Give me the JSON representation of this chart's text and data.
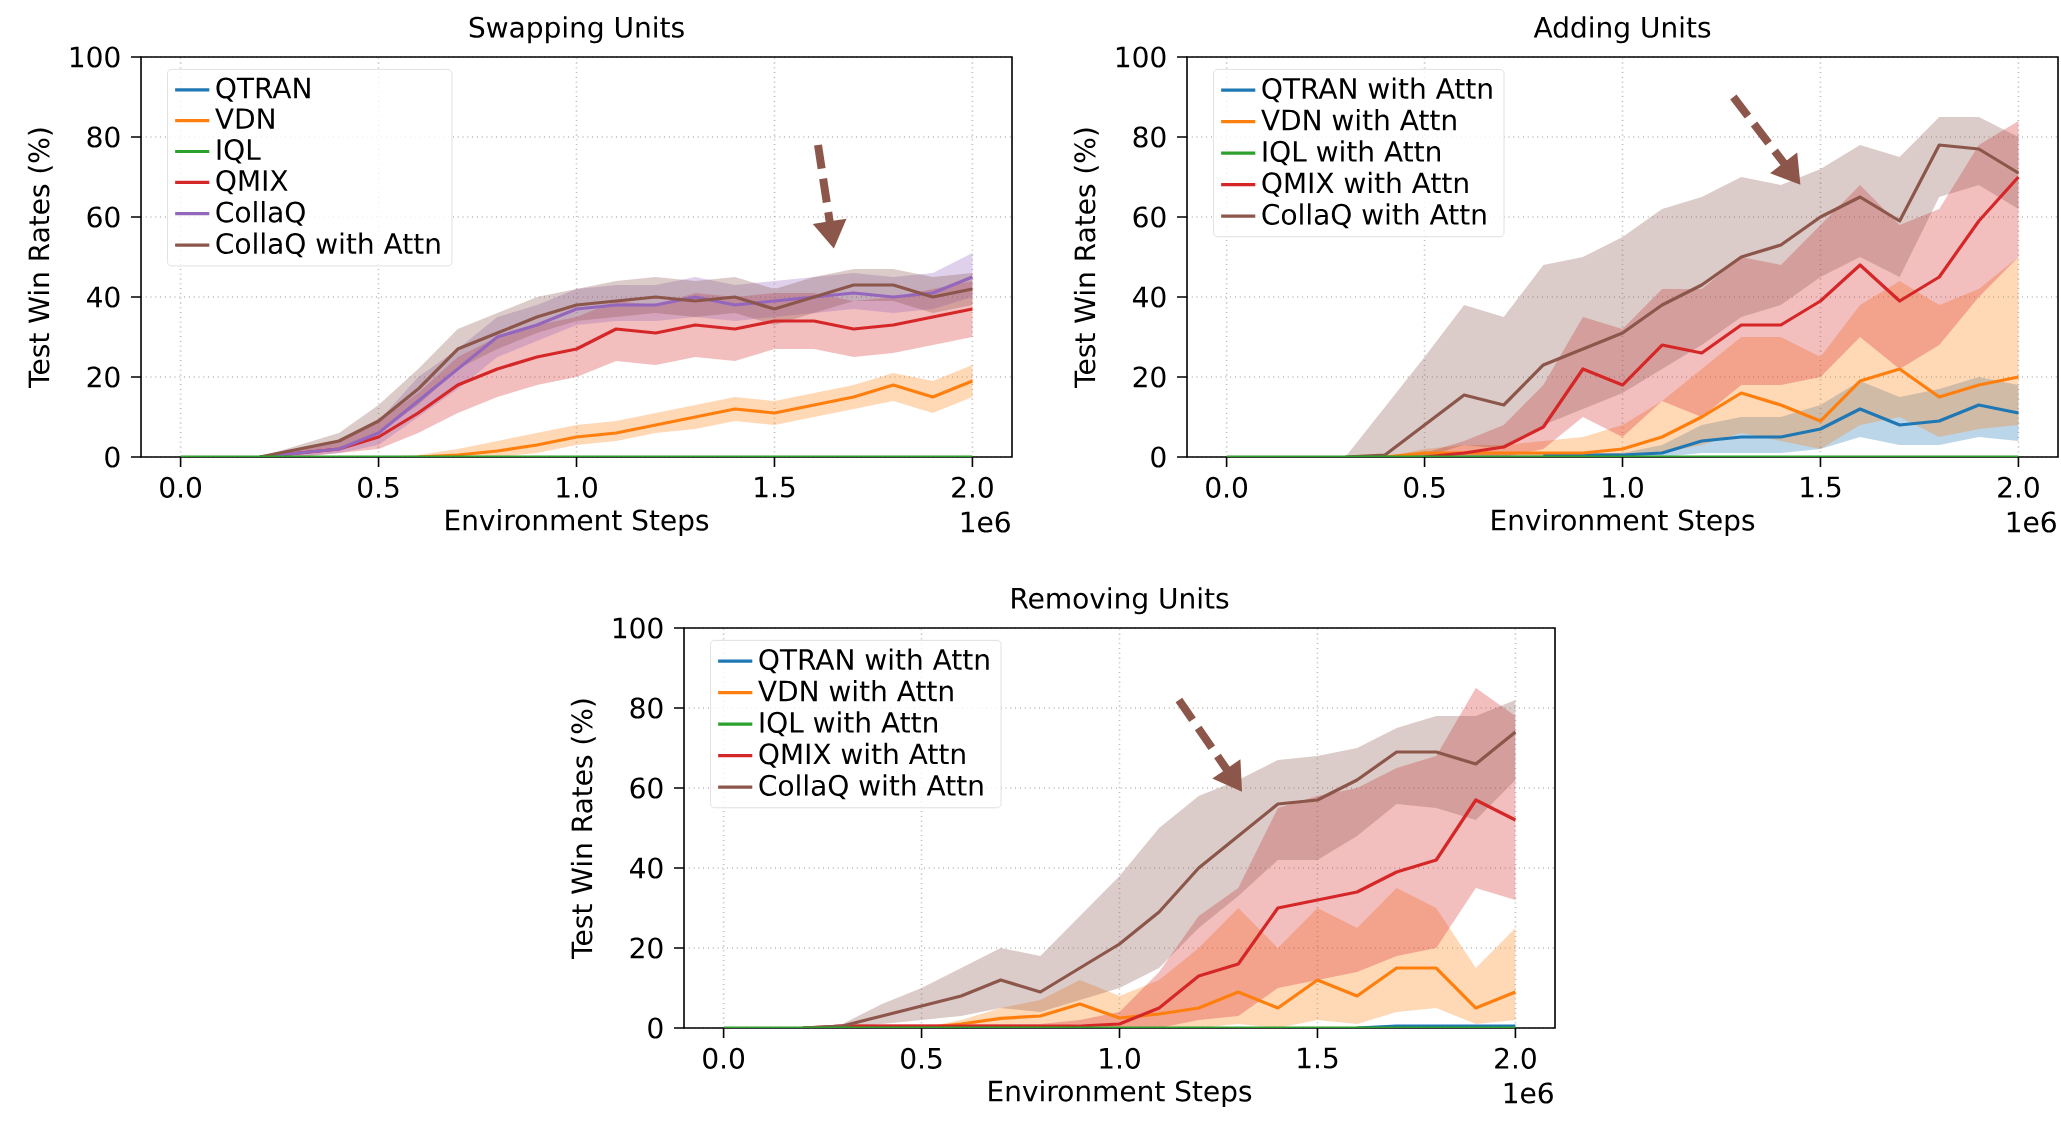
{
  "chart_data": [
    {
      "type": "line",
      "title": "Swapping Units",
      "xlabel": "Environment Steps",
      "ylabel": "Test Win Rates (%)",
      "annotations": [
        "1e6"
      ],
      "grid": true,
      "legend": "top left",
      "marker": "none",
      "line_style": "solid",
      "xlim": [
        -0.1,
        2.1
      ],
      "ylim": [
        0,
        100
      ],
      "xticks": [
        {
          "value": 0,
          "label": "0.0"
        },
        {
          "value": 0.5,
          "label": "0.5"
        },
        {
          "value": 1,
          "label": "1.0"
        },
        {
          "value": 1.5,
          "label": "1.5"
        },
        {
          "value": 2,
          "label": "2.0"
        }
      ],
      "yticks": [
        0,
        20,
        40,
        60,
        80,
        100
      ],
      "x": [
        0,
        0.1,
        0.2,
        0.3,
        0.4,
        0.5,
        0.6,
        0.7,
        0.8,
        0.9,
        1.0,
        1.1,
        1.2,
        1.3,
        1.4,
        1.5,
        1.6,
        1.7,
        1.8,
        1.9,
        2.0
      ],
      "series": [
        {
          "name": "QTRAN",
          "color": "#1f77b4",
          "values": [
            null,
            null,
            null,
            null,
            null,
            null,
            null,
            null,
            null,
            null,
            null,
            null,
            null,
            null,
            null,
            null,
            null,
            null,
            null,
            null,
            null
          ]
        },
        {
          "name": "VDN",
          "color": "#ff7f0e",
          "values": [
            null,
            null,
            null,
            null,
            null,
            null,
            0,
            0.5,
            1.5,
            3,
            5,
            6,
            8,
            10,
            12,
            11,
            13,
            15,
            18,
            15,
            19
          ],
          "lower": [
            0,
            0,
            0,
            0,
            0,
            0,
            0,
            0,
            0,
            1,
            3,
            4,
            6,
            7,
            9,
            8,
            10,
            12,
            14,
            11,
            15
          ],
          "upper": [
            0,
            0,
            0,
            0,
            0,
            0,
            0.5,
            2,
            4,
            6,
            8,
            9,
            11,
            13,
            15,
            14,
            16,
            18,
            21,
            19,
            23
          ]
        },
        {
          "name": "IQL",
          "color": "#2ca02c",
          "values": [
            0,
            0,
            0,
            0,
            0,
            0,
            0,
            0,
            0,
            0,
            0,
            0,
            0,
            0,
            0,
            0,
            0,
            0,
            0,
            0,
            0
          ]
        },
        {
          "name": "QMIX",
          "color": "#d62728",
          "values": [
            null,
            null,
            0,
            1,
            2,
            5,
            11,
            18,
            22,
            25,
            27,
            32,
            31,
            33,
            32,
            34,
            34,
            32,
            33,
            35,
            37
          ],
          "lower": [
            0,
            0,
            0,
            0,
            1,
            2,
            6,
            11,
            15,
            18,
            20,
            24,
            23,
            25,
            24,
            27,
            27,
            25,
            26,
            28,
            30
          ],
          "upper": [
            0,
            0,
            0,
            2,
            4,
            9,
            16,
            25,
            30,
            33,
            35,
            39,
            38,
            41,
            40,
            41,
            41,
            39,
            40,
            42,
            44
          ]
        },
        {
          "name": "CollaQ",
          "color": "#9467bd",
          "values": [
            null,
            null,
            0,
            1,
            2,
            6,
            14,
            22,
            30,
            33,
            37,
            38,
            38,
            40,
            38,
            39,
            40,
            41,
            40,
            41,
            45
          ],
          "lower": [
            0,
            0,
            0,
            0,
            1,
            3,
            10,
            17,
            25,
            29,
            33,
            34,
            34,
            35,
            34,
            35,
            36,
            37,
            36,
            37,
            40
          ],
          "upper": [
            0,
            0,
            0,
            2,
            4,
            9,
            20,
            27,
            35,
            38,
            42,
            43,
            43,
            45,
            43,
            44,
            45,
            46,
            45,
            46,
            51
          ]
        },
        {
          "name": "CollaQ with Attn",
          "color": "#8c564b",
          "values": [
            null,
            null,
            0,
            2,
            4,
            9,
            17,
            27,
            31,
            35,
            38,
            39,
            40,
            39,
            40,
            37,
            40,
            43,
            43,
            40,
            42
          ],
          "lower": [
            0,
            0,
            0,
            1,
            2,
            6,
            13,
            22,
            27,
            31,
            34,
            35,
            36,
            35,
            36,
            33,
            36,
            39,
            39,
            36,
            38
          ],
          "upper": [
            0,
            0,
            0,
            3,
            6,
            13,
            22,
            32,
            36,
            40,
            42,
            44,
            45,
            44,
            45,
            42,
            45,
            47,
            47,
            45,
            46
          ]
        }
      ]
    },
    {
      "type": "line",
      "title": "Adding Units",
      "xlabel": "Environment Steps",
      "ylabel": "Test Win Rates (%)",
      "annotations": [
        "1e6"
      ],
      "grid": true,
      "legend": "top left",
      "marker": "none",
      "line_style": "solid",
      "xlim": [
        -0.1,
        2.1
      ],
      "ylim": [
        0,
        100
      ],
      "xticks": [
        {
          "value": 0,
          "label": "0.0"
        },
        {
          "value": 0.5,
          "label": "0.5"
        },
        {
          "value": 1,
          "label": "1.0"
        },
        {
          "value": 1.5,
          "label": "1.5"
        },
        {
          "value": 2,
          "label": "2.0"
        }
      ],
      "yticks": [
        0,
        20,
        40,
        60,
        80,
        100
      ],
      "x": [
        0,
        0.1,
        0.2,
        0.3,
        0.4,
        0.5,
        0.6,
        0.7,
        0.8,
        0.9,
        1.0,
        1.1,
        1.2,
        1.3,
        1.4,
        1.5,
        1.6,
        1.7,
        1.8,
        1.9,
        2.0
      ],
      "series": [
        {
          "name": "QTRAN with Attn",
          "color": "#1f77b4",
          "values": [
            null,
            null,
            null,
            null,
            null,
            null,
            null,
            null,
            0.5,
            0.5,
            0.5,
            1,
            4,
            5,
            5,
            7,
            12,
            8,
            9,
            13,
            11
          ],
          "lower": [
            0,
            0,
            0,
            0,
            0,
            0,
            0,
            0,
            0,
            0,
            0,
            0,
            1,
            1,
            1,
            2,
            5,
            3,
            3,
            5,
            4
          ],
          "upper": [
            0,
            0,
            0,
            0,
            0,
            1,
            1,
            1,
            1,
            1,
            1,
            3,
            8,
            10,
            10,
            13,
            19,
            15,
            17,
            20,
            18
          ]
        },
        {
          "name": "VDN with Attn",
          "color": "#ff7f0e",
          "values": [
            null,
            null,
            null,
            null,
            0,
            1,
            1,
            1,
            1,
            1,
            2,
            5,
            10,
            16,
            13,
            9,
            19,
            22,
            15,
            18,
            20
          ],
          "lower": [
            0,
            0,
            0,
            0,
            0,
            0,
            0,
            0,
            0,
            0,
            0,
            1,
            3,
            6,
            4,
            2,
            8,
            10,
            5,
            7,
            8
          ],
          "upper": [
            0,
            0,
            0,
            0,
            0,
            2,
            3,
            3,
            4,
            5,
            8,
            14,
            22,
            30,
            30,
            25,
            38,
            44,
            38,
            42,
            50
          ]
        },
        {
          "name": "IQL with Attn",
          "color": "#2ca02c",
          "values": [
            0,
            0,
            0,
            0,
            0,
            0,
            0,
            0,
            0,
            0,
            0,
            0,
            0,
            0,
            0,
            0,
            0,
            0,
            0,
            0,
            0
          ]
        },
        {
          "name": "QMIX with Attn",
          "color": "#d62728",
          "values": [
            null,
            null,
            null,
            null,
            null,
            0,
            1,
            2.5,
            7.5,
            22,
            18,
            28,
            26,
            33,
            33,
            39,
            48,
            39,
            45,
            59,
            70
          ],
          "lower": [
            0,
            0,
            0,
            0,
            0,
            0,
            0,
            0,
            2,
            10,
            5,
            14,
            10,
            18,
            18,
            20,
            30,
            22,
            28,
            40,
            50
          ],
          "upper": [
            0,
            0,
            0,
            0,
            0,
            1,
            4,
            8,
            18,
            35,
            32,
            42,
            42,
            50,
            48,
            58,
            68,
            58,
            62,
            78,
            84
          ]
        },
        {
          "name": "CollaQ with Attn",
          "color": "#8c564b",
          "values": [
            null,
            null,
            null,
            0,
            0.5,
            8,
            15.5,
            13,
            23,
            27,
            31,
            38,
            43,
            50,
            53,
            60,
            65,
            59,
            78,
            77,
            71
          ],
          "lower": [
            0,
            0,
            0,
            0,
            null,
            0,
            3,
            2,
            8,
            12,
            16,
            22,
            28,
            35,
            38,
            45,
            50,
            45,
            65,
            68,
            62
          ],
          "upper": [
            0,
            0,
            0,
            0,
            null,
            25,
            38,
            35,
            48,
            50,
            55,
            62,
            65,
            70,
            68,
            72,
            78,
            75,
            85,
            85,
            80
          ]
        }
      ]
    },
    {
      "type": "line",
      "title": "Removing Units",
      "xlabel": "Environment Steps",
      "ylabel": "Test Win Rates (%)",
      "annotations": [
        "1e6"
      ],
      "grid": true,
      "legend": "top left",
      "marker": "none",
      "line_style": "solid",
      "xlim": [
        -0.1,
        2.1
      ],
      "ylim": [
        0,
        100
      ],
      "xticks": [
        {
          "value": 0,
          "label": "0.0"
        },
        {
          "value": 0.5,
          "label": "0.5"
        },
        {
          "value": 1,
          "label": "1.0"
        },
        {
          "value": 1.5,
          "label": "1.5"
        },
        {
          "value": 2,
          "label": "2.0"
        }
      ],
      "yticks": [
        0,
        20,
        40,
        60,
        80,
        100
      ],
      "x": [
        0,
        0.1,
        0.2,
        0.3,
        0.4,
        0.5,
        0.6,
        0.7,
        0.8,
        0.9,
        1.0,
        1.1,
        1.2,
        1.3,
        1.4,
        1.5,
        1.6,
        1.7,
        1.8,
        1.9,
        2.0
      ],
      "series": [
        {
          "name": "QTRAN with Attn",
          "color": "#1f77b4",
          "values": [
            null,
            null,
            null,
            null,
            null,
            null,
            null,
            null,
            null,
            null,
            null,
            null,
            null,
            null,
            null,
            null,
            0,
            0.5,
            0.5,
            0.5,
            0.5
          ]
        },
        {
          "name": "VDN with Attn",
          "color": "#ff7f0e",
          "values": [
            null,
            null,
            null,
            null,
            null,
            0,
            1,
            2.4,
            3,
            6,
            2.5,
            3.5,
            5,
            9,
            5,
            12,
            8,
            15,
            15,
            5,
            9
          ],
          "lower": [
            0,
            0,
            0,
            0,
            0,
            0,
            0,
            0,
            0,
            1,
            0,
            0,
            0,
            1,
            0,
            2,
            1,
            4,
            5,
            1,
            2
          ],
          "upper": [
            0,
            0,
            0,
            0,
            0,
            0,
            2,
            5,
            7,
            12,
            8,
            12,
            20,
            30,
            20,
            30,
            25,
            35,
            30,
            15,
            25
          ]
        },
        {
          "name": "IQL with Attn",
          "color": "#2ca02c",
          "values": [
            0,
            0,
            0,
            0,
            0,
            0,
            0,
            0,
            0,
            0,
            0,
            0,
            0,
            0,
            0,
            0,
            0,
            0,
            0,
            0,
            0
          ]
        },
        {
          "name": "QMIX with Attn",
          "color": "#d62728",
          "values": [
            null,
            null,
            0,
            0.5,
            0.5,
            0.5,
            0.5,
            0.5,
            0.5,
            0.5,
            1,
            5,
            13,
            16,
            30,
            32,
            34,
            39,
            42,
            57,
            52
          ],
          "lower": [
            0,
            0,
            0,
            0,
            0,
            0,
            0,
            0,
            0,
            0,
            0,
            0,
            2,
            3,
            10,
            12,
            14,
            18,
            20,
            35,
            32
          ],
          "upper": [
            0,
            0,
            0,
            1,
            1,
            1,
            1,
            1,
            1,
            2,
            4,
            14,
            28,
            35,
            55,
            58,
            60,
            65,
            68,
            85,
            78
          ]
        },
        {
          "name": "CollaQ with Attn",
          "color": "#8c564b",
          "values": [
            null,
            null,
            0,
            0.5,
            3,
            5.5,
            8,
            12,
            9,
            15,
            21,
            29,
            40,
            48,
            56,
            57,
            62,
            69,
            69,
            66,
            74
          ],
          "lower": [
            0,
            0,
            0,
            0,
            1,
            2,
            3,
            5,
            4,
            7,
            10,
            15,
            25,
            33,
            42,
            42,
            48,
            56,
            55,
            52,
            62
          ],
          "upper": [
            0,
            0,
            0,
            1,
            6,
            10,
            15,
            20,
            18,
            28,
            38,
            50,
            58,
            62,
            67,
            68,
            70,
            75,
            78,
            78,
            82
          ]
        }
      ]
    }
  ]
}
